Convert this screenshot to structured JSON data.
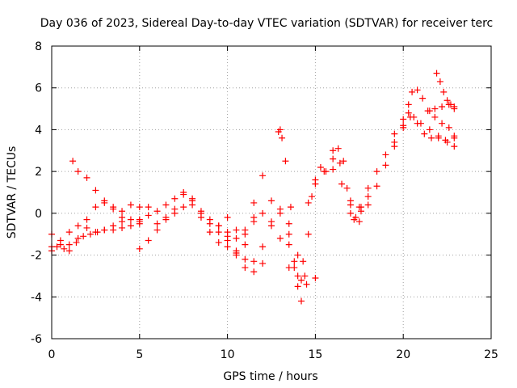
{
  "chart_data": {
    "type": "scatter",
    "title": "Day 036 of 2023, Sidereal Day-to-day VTEC variation (SDTVAR) for receiver terc",
    "xlabel": "GPS time / hours",
    "ylabel": "SDTVAR / TECUs",
    "xlim": [
      0,
      25
    ],
    "ylim": [
      -6,
      8
    ],
    "xticks": [
      "0",
      "5",
      "10",
      "15",
      "20",
      "25"
    ],
    "yticks": [
      "-6",
      "-4",
      "-2",
      "0",
      "2",
      "4",
      "6",
      "8"
    ],
    "grid": true,
    "marker": "plus",
    "color": "#ff0000",
    "series": [
      {
        "x": [
          0.0,
          0.5,
          1.0,
          1.5,
          2.0,
          2.5,
          3.0,
          3.5,
          4.0,
          4.5,
          5.0
        ],
        "values": [
          -1.6,
          -1.3,
          -0.9,
          -0.6,
          -0.7,
          -0.9,
          -0.8,
          -0.6,
          -0.4,
          -0.3,
          -0.5
        ]
      },
      {
        "x": [
          0.0,
          0.5,
          1.0,
          1.5,
          2.0,
          2.5,
          3.0,
          3.5,
          4.0
        ],
        "values": [
          -1.0,
          -1.5,
          -1.8,
          -1.2,
          -0.3,
          0.3,
          0.5,
          0.2,
          -0.2
        ]
      },
      {
        "x": [
          0.0,
          0.3,
          0.7,
          1.0,
          1.4,
          1.8,
          2.2,
          2.6,
          3.0,
          3.5,
          4.0,
          4.5,
          5.0
        ],
        "values": [
          -1.8,
          -1.6,
          -1.7,
          -1.5,
          -1.4,
          -1.1,
          -1.0,
          -0.9,
          -0.8,
          -0.8,
          -0.7,
          -0.6,
          -0.4
        ]
      },
      {
        "x": [
          1.2,
          1.5,
          2.0,
          2.5,
          3.0,
          3.5,
          4.0,
          4.5,
          5.0,
          5.5
        ],
        "values": [
          2.5,
          2.0,
          1.7,
          1.1,
          0.6,
          0.3,
          0.1,
          0.4,
          0.3,
          0.3
        ]
      },
      {
        "x": [
          5.0,
          5.5,
          6.0,
          6.5,
          7.0,
          7.5,
          8.0,
          8.5,
          9.0,
          9.5,
          10.0
        ],
        "values": [
          -1.7,
          -1.3,
          -0.8,
          -0.3,
          0.2,
          0.9,
          0.7,
          0.0,
          -0.5,
          -0.9,
          -1.1
        ]
      },
      {
        "x": [
          5.0,
          5.5,
          6.0,
          6.5,
          7.0,
          7.5,
          8.0,
          8.5,
          9.0,
          9.5,
          10.0,
          10.5,
          11.0,
          11.5
        ],
        "values": [
          -0.3,
          -0.1,
          0.1,
          0.4,
          0.7,
          1.0,
          0.6,
          0.1,
          -0.3,
          -0.6,
          -0.9,
          -1.2,
          -0.8,
          -0.2
        ]
      },
      {
        "x": [
          6.0,
          6.5,
          7.0,
          7.5,
          8.0,
          8.5,
          9.0,
          9.5,
          10.0,
          10.5,
          11.0,
          11.5,
          12.0
        ],
        "values": [
          -0.5,
          -0.2,
          0.0,
          0.3,
          0.4,
          -0.2,
          -0.9,
          -1.4,
          -1.6,
          -1.9,
          -2.2,
          -2.8,
          -2.4
        ]
      },
      {
        "x": [
          10.0,
          10.5,
          11.0,
          11.5,
          12.0,
          12.5,
          13.0,
          13.5,
          14.0,
          14.5,
          15.0
        ],
        "values": [
          -0.2,
          -0.8,
          -1.5,
          0.5,
          1.8,
          -0.6,
          -1.2,
          -2.6,
          -3.0,
          -3.4,
          -3.1
        ]
      },
      {
        "x": [
          9.5,
          10.0,
          10.5,
          11.0,
          11.5,
          12.0,
          12.5,
          13.0,
          13.5,
          13.8
        ],
        "values": [
          -0.6,
          -1.3,
          -2.0,
          -2.6,
          -2.3,
          -1.6,
          -0.4,
          0.0,
          -1.0,
          -2.3
        ]
      },
      {
        "x": [
          10.5,
          11.0,
          11.5,
          12.0,
          12.5,
          13.0,
          13.5
        ],
        "values": [
          -1.8,
          -1.0,
          -0.4,
          0.0,
          0.6,
          0.2,
          -0.5
        ]
      },
      {
        "x": [
          12.9,
          13.0,
          13.1,
          13.3,
          13.6,
          14.0,
          14.2
        ],
        "values": [
          3.9,
          4.0,
          3.6,
          2.5,
          0.3,
          -2.0,
          -3.2
        ]
      },
      {
        "x": [
          13.5,
          13.8,
          14.0,
          14.2,
          14.4,
          14.6,
          14.8,
          15.0,
          15.3,
          15.6,
          16.0,
          16.4,
          16.8,
          17.2,
          17.6,
          18.0
        ],
        "values": [
          -1.5,
          -2.6,
          -3.5,
          -4.2,
          -3.0,
          -1.0,
          0.8,
          1.6,
          2.2,
          2.0,
          3.0,
          2.4,
          1.2,
          -0.3,
          0.1,
          0.8
        ]
      },
      {
        "x": [
          14.3,
          14.6,
          15.0,
          15.5,
          16.0,
          16.3,
          16.6,
          17.0,
          17.3,
          17.6
        ],
        "values": [
          -2.3,
          0.5,
          1.4,
          2.0,
          2.6,
          3.1,
          2.5,
          0.6,
          -0.2,
          0.3
        ]
      },
      {
        "x": [
          16.0,
          16.5,
          17.0,
          17.5,
          18.0,
          18.5,
          19.0,
          19.5,
          20.0,
          20.4,
          20.8,
          21.2,
          21.6,
          22.0,
          22.4,
          22.9
        ],
        "values": [
          2.1,
          1.4,
          0.0,
          -0.4,
          0.4,
          1.3,
          2.3,
          3.2,
          4.1,
          4.6,
          4.3,
          3.8,
          3.6,
          3.7,
          3.5,
          3.2
        ]
      },
      {
        "x": [
          17.0,
          17.5,
          18.0,
          18.5,
          19.0,
          19.5,
          20.0,
          20.3,
          20.6,
          21.0,
          21.5,
          22.0,
          22.5,
          22.9
        ],
        "values": [
          0.4,
          0.3,
          1.2,
          2.0,
          2.8,
          3.4,
          4.2,
          4.8,
          4.6,
          4.3,
          4.0,
          3.6,
          3.4,
          3.6
        ]
      },
      {
        "x": [
          19.5,
          20.0,
          20.3,
          20.5,
          20.8,
          21.1,
          21.4,
          21.8,
          22.2,
          22.6,
          22.9
        ],
        "values": [
          3.8,
          4.5,
          5.2,
          5.8,
          5.9,
          5.5,
          4.9,
          4.6,
          4.3,
          4.1,
          3.7
        ]
      },
      {
        "x": [
          21.9,
          22.1,
          22.3,
          22.5,
          22.7,
          22.9
        ],
        "values": [
          6.7,
          6.3,
          5.8,
          5.4,
          5.2,
          5.0
        ]
      },
      {
        "x": [
          21.5,
          21.8,
          22.2,
          22.6,
          22.9
        ],
        "values": [
          4.9,
          5.0,
          5.1,
          5.2,
          5.1
        ]
      }
    ]
  }
}
